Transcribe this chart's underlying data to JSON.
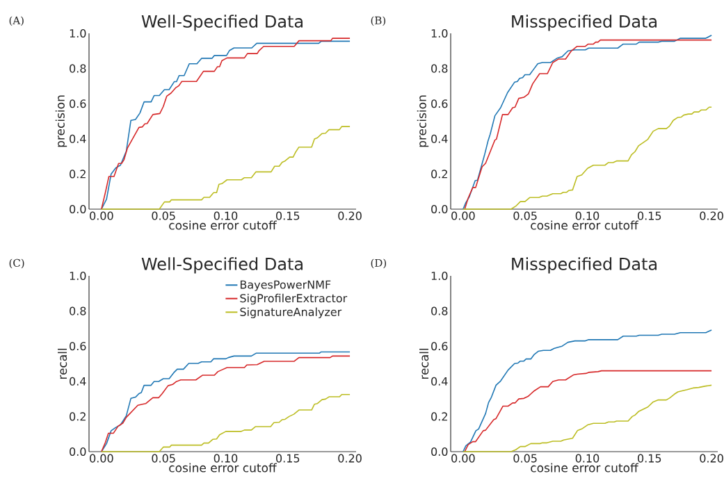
{
  "chart_data": [
    {
      "type": "line",
      "title": "Well-Specified Data",
      "xlabel": "cosine error cutoff",
      "ylabel": "precision",
      "annotations": [
        "(A)"
      ],
      "xlim": [
        -0.01,
        0.205
      ],
      "ylim": [
        0,
        1.0
      ],
      "xticks": [
        {
          "value": 0,
          "label": "0.00"
        },
        {
          "value": 0.05,
          "label": "0.05"
        },
        {
          "value": 0.1,
          "label": "0.10"
        },
        {
          "value": 0.15,
          "label": "0.15"
        },
        {
          "value": 0.2,
          "label": "0.20"
        }
      ],
      "yticks": [
        {
          "value": 0,
          "label": "0.0"
        },
        {
          "value": 0.2,
          "label": "0.2"
        },
        {
          "value": 0.4,
          "label": "0.4"
        },
        {
          "value": 0.6,
          "label": "0.6"
        },
        {
          "value": 0.8,
          "label": "0.8"
        },
        {
          "value": 1.0,
          "label": "1.0"
        }
      ],
      "series": [
        {
          "color": "#1f77b4",
          "x": [
            0,
            0.0041,
            0.0078,
            0.0116,
            0.0153,
            0.02,
            0.0237,
            0.0274,
            0.031,
            0.0343,
            0.04,
            0.0424,
            0.0466,
            0.0507,
            0.0545,
            0.0586,
            0.0604,
            0.0625,
            0.0666,
            0.0707,
            0.0769,
            0.0806,
            0.089,
            0.0909,
            0.1007,
            0.103,
            0.1067,
            0.121,
            0.125,
            0.1749,
            0.177,
            0.2
          ],
          "values": [
            0,
            0.057,
            0.2,
            0.235,
            0.25,
            0.33,
            0.505,
            0.51,
            0.547,
            0.61,
            0.61,
            0.646,
            0.646,
            0.68,
            0.68,
            0.725,
            0.725,
            0.76,
            0.76,
            0.827,
            0.827,
            0.858,
            0.858,
            0.874,
            0.874,
            0.902,
            0.917,
            0.917,
            0.943,
            0.943,
            0.955,
            0.955
          ]
        },
        {
          "color": "#d62728",
          "x": [
            0,
            0.0032,
            0.006,
            0.0101,
            0.0138,
            0.0162,
            0.0181,
            0.0209,
            0.0302,
            0.033,
            0.0349,
            0.0368,
            0.0414,
            0.047,
            0.0498,
            0.0526,
            0.056,
            0.0597,
            0.0623,
            0.0647,
            0.0765,
            0.0821,
            0.0909,
            0.0933,
            0.0951,
            0.097,
            0.1011,
            0.1151,
            0.1175,
            0.1254,
            0.1269,
            0.1306,
            0.1552,
            0.159,
            0.1847,
            0.186,
            0.2
          ],
          "values": [
            0,
            0.096,
            0.186,
            0.186,
            0.26,
            0.26,
            0.28,
            0.347,
            0.465,
            0.468,
            0.485,
            0.487,
            0.538,
            0.544,
            0.584,
            0.643,
            0.66,
            0.69,
            0.702,
            0.726,
            0.726,
            0.784,
            0.784,
            0.81,
            0.81,
            0.845,
            0.86,
            0.86,
            0.885,
            0.885,
            0.902,
            0.926,
            0.926,
            0.958,
            0.958,
            0.972,
            0.972
          ]
        },
        {
          "color": "#bcbd22",
          "x": [
            0,
            0.0466,
            0.0507,
            0.0549,
            0.0563,
            0.0806,
            0.0825,
            0.0871,
            0.0903,
            0.0927,
            0.0946,
            0.097,
            0.1011,
            0.1127,
            0.1151,
            0.1207,
            0.1244,
            0.1366,
            0.1394,
            0.1431,
            0.1455,
            0.1478,
            0.1515,
            0.1543,
            0.1562,
            0.159,
            0.1692,
            0.1715,
            0.1739,
            0.1776,
            0.1804,
            0.1832,
            0.1916,
            0.1935,
            0.2
          ],
          "values": [
            0,
            0,
            0.041,
            0.041,
            0.053,
            0.053,
            0.067,
            0.067,
            0.094,
            0.094,
            0.141,
            0.145,
            0.167,
            0.167,
            0.179,
            0.179,
            0.212,
            0.212,
            0.244,
            0.244,
            0.267,
            0.274,
            0.296,
            0.296,
            0.323,
            0.353,
            0.353,
            0.399,
            0.406,
            0.43,
            0.432,
            0.452,
            0.452,
            0.47,
            0.47
          ]
        }
      ]
    },
    {
      "type": "line",
      "title": "Misspecified Data",
      "xlabel": "cosine error cutoff",
      "ylabel": "precision",
      "annotations": [
        "(B)"
      ],
      "xlim": [
        -0.01,
        0.205
      ],
      "ylim": [
        0,
        1.0
      ],
      "xticks": [
        {
          "value": 0,
          "label": "0.00"
        },
        {
          "value": 0.05,
          "label": "0.05"
        },
        {
          "value": 0.1,
          "label": "0.10"
        },
        {
          "value": 0.15,
          "label": "0.15"
        },
        {
          "value": 0.2,
          "label": "0.20"
        }
      ],
      "yticks": [
        {
          "value": 0,
          "label": "0.0"
        },
        {
          "value": 0.2,
          "label": "0.2"
        },
        {
          "value": 0.4,
          "label": "0.4"
        },
        {
          "value": 0.6,
          "label": "0.6"
        },
        {
          "value": 0.8,
          "label": "0.8"
        },
        {
          "value": 1.0,
          "label": "1.0"
        }
      ],
      "series": [
        {
          "color": "#1f77b4",
          "x": [
            0,
            0.0022,
            0.005,
            0.0097,
            0.0116,
            0.0172,
            0.02,
            0.0218,
            0.0256,
            0.0302,
            0.0358,
            0.0414,
            0.0437,
            0.0455,
            0.0479,
            0.0498,
            0.0536,
            0.056,
            0.0601,
            0.0638,
            0.0704,
            0.0732,
            0.076,
            0.0797,
            0.0844,
            0.09,
            0.0984,
            0.1011,
            0.1245,
            0.1289,
            0.1395,
            0.1418,
            0.1571,
            0.1599,
            0.1702,
            0.1749,
            0.1954,
            0.2
          ],
          "values": [
            0,
            0.037,
            0.07,
            0.162,
            0.165,
            0.307,
            0.386,
            0.426,
            0.531,
            0.577,
            0.663,
            0.722,
            0.726,
            0.744,
            0.748,
            0.765,
            0.765,
            0.788,
            0.827,
            0.834,
            0.834,
            0.847,
            0.86,
            0.867,
            0.9,
            0.906,
            0.906,
            0.916,
            0.916,
            0.939,
            0.939,
            0.95,
            0.95,
            0.955,
            0.955,
            0.972,
            0.972,
            0.989
          ]
        },
        {
          "color": "#d62728",
          "x": [
            0.0013,
            0.0041,
            0.0078,
            0.0101,
            0.0153,
            0.0181,
            0.0256,
            0.0269,
            0.0317,
            0.0362,
            0.0399,
            0.0418,
            0.0448,
            0.0489,
            0.0526,
            0.056,
            0.0616,
            0.0679,
            0.0722,
            0.0769,
            0.0825,
            0.0871,
            0.0918,
            0.0984,
            0.1007,
            0.1049,
            0.1067,
            0.1086,
            0.1105,
            0.2
          ],
          "values": [
            0,
            0.063,
            0.123,
            0.123,
            0.241,
            0.261,
            0.393,
            0.399,
            0.538,
            0.538,
            0.577,
            0.58,
            0.63,
            0.636,
            0.656,
            0.713,
            0.771,
            0.771,
            0.834,
            0.854,
            0.854,
            0.9,
            0.926,
            0.926,
            0.939,
            0.939,
            0.95,
            0.95,
            0.962,
            0.962
          ]
        },
        {
          "color": "#bcbd22",
          "x": [
            0,
            0.0386,
            0.0424,
            0.0461,
            0.0498,
            0.0536,
            0.061,
            0.0638,
            0.0675,
            0.0722,
            0.0787,
            0.0806,
            0.0834,
            0.0853,
            0.0881,
            0.0918,
            0.0955,
            0.1002,
            0.1049,
            0.1142,
            0.117,
            0.1207,
            0.1235,
            0.1328,
            0.1356,
            0.1384,
            0.1412,
            0.1487,
            0.153,
            0.1571,
            0.1636,
            0.1661,
            0.1692,
            0.1729,
            0.1757,
            0.1776,
            0.1813,
            0.1841,
            0.186,
            0.1897,
            0.1916,
            0.1954,
            0.1981,
            0.2
          ],
          "values": [
            0,
            0,
            0.017,
            0.043,
            0.043,
            0.066,
            0.066,
            0.074,
            0.074,
            0.088,
            0.088,
            0.096,
            0.096,
            0.107,
            0.109,
            0.186,
            0.195,
            0.232,
            0.25,
            0.25,
            0.265,
            0.265,
            0.274,
            0.274,
            0.31,
            0.327,
            0.36,
            0.397,
            0.443,
            0.458,
            0.458,
            0.472,
            0.505,
            0.522,
            0.524,
            0.535,
            0.541,
            0.541,
            0.553,
            0.553,
            0.564,
            0.564,
            0.58,
            0.58
          ]
        }
      ]
    },
    {
      "type": "line",
      "title": "Well-Specified Data",
      "xlabel": "cosine error cutoff",
      "ylabel": "recall",
      "annotations": [
        "(C)"
      ],
      "legend": "top right",
      "xlim": [
        -0.01,
        0.205
      ],
      "ylim": [
        0,
        1.0
      ],
      "xticks": [
        {
          "value": 0,
          "label": "0.00"
        },
        {
          "value": 0.05,
          "label": "0.05"
        },
        {
          "value": 0.1,
          "label": "0.10"
        },
        {
          "value": 0.15,
          "label": "0.15"
        },
        {
          "value": 0.2,
          "label": "0.20"
        }
      ],
      "yticks": [
        {
          "value": 0,
          "label": "0.0"
        },
        {
          "value": 0.2,
          "label": "0.2"
        },
        {
          "value": 0.4,
          "label": "0.4"
        },
        {
          "value": 0.6,
          "label": "0.6"
        },
        {
          "value": 0.8,
          "label": "0.8"
        },
        {
          "value": 1.0,
          "label": "1.0"
        }
      ],
      "series": [
        {
          "name": "BayesPowerNMF",
          "color": "#1f77b4",
          "x": [
            0,
            0.0041,
            0.0078,
            0.0116,
            0.0153,
            0.02,
            0.0237,
            0.0274,
            0.0302,
            0.0321,
            0.0343,
            0.0399,
            0.0424,
            0.0461,
            0.0498,
            0.0545,
            0.0582,
            0.061,
            0.066,
            0.0703,
            0.0778,
            0.0806,
            0.0881,
            0.0903,
            0.1002,
            0.1021,
            0.1067,
            0.1207,
            0.1245,
            0.1754,
            0.1767,
            0.2
          ],
          "values": [
            0,
            0.046,
            0.119,
            0.138,
            0.152,
            0.204,
            0.303,
            0.31,
            0.33,
            0.336,
            0.377,
            0.377,
            0.399,
            0.399,
            0.415,
            0.415,
            0.449,
            0.469,
            0.469,
            0.502,
            0.502,
            0.511,
            0.511,
            0.528,
            0.528,
            0.535,
            0.544,
            0.544,
            0.56,
            0.56,
            0.567,
            0.567
          ]
        },
        {
          "name": "SigProfilerExtractor",
          "color": "#d62728",
          "x": [
            0,
            0.0032,
            0.0056,
            0.0097,
            0.0134,
            0.0172,
            0.02,
            0.0293,
            0.033,
            0.0358,
            0.0414,
            0.0461,
            0.0489,
            0.0536,
            0.0573,
            0.0601,
            0.0638,
            0.076,
            0.0815,
            0.0909,
            0.0937,
            0.0965,
            0.1011,
            0.1151,
            0.117,
            0.1254,
            0.131,
            0.1552,
            0.159,
            0.1841,
            0.186,
            0.2
          ],
          "values": [
            0,
            0.053,
            0.105,
            0.105,
            0.145,
            0.162,
            0.195,
            0.264,
            0.27,
            0.274,
            0.307,
            0.307,
            0.33,
            0.375,
            0.382,
            0.398,
            0.408,
            0.408,
            0.435,
            0.435,
            0.455,
            0.464,
            0.478,
            0.478,
            0.493,
            0.495,
            0.514,
            0.514,
            0.535,
            0.535,
            0.544,
            0.544
          ]
        },
        {
          "name": "SignatureAnalyzer",
          "color": "#bcbd22",
          "x": [
            0,
            0.0466,
            0.0498,
            0.0549,
            0.0563,
            0.0806,
            0.0825,
            0.0862,
            0.0896,
            0.0927,
            0.0951,
            0.1002,
            0.1123,
            0.1151,
            0.1207,
            0.1239,
            0.1362,
            0.1388,
            0.1431,
            0.1455,
            0.1478,
            0.1511,
            0.1549,
            0.159,
            0.1692,
            0.1715,
            0.1739,
            0.1776,
            0.1804,
            0.1832,
            0.1916,
            0.1935,
            0.2
          ],
          "values": [
            0,
            0,
            0.026,
            0.026,
            0.037,
            0.037,
            0.049,
            0.049,
            0.07,
            0.072,
            0.096,
            0.115,
            0.115,
            0.123,
            0.123,
            0.142,
            0.142,
            0.165,
            0.167,
            0.182,
            0.184,
            0.2,
            0.213,
            0.237,
            0.237,
            0.27,
            0.274,
            0.296,
            0.299,
            0.312,
            0.312,
            0.325,
            0.325
          ]
        }
      ]
    },
    {
      "type": "line",
      "title": "Misspecified Data",
      "xlabel": "cosine error cutoff",
      "ylabel": "recall",
      "annotations": [
        "(D)"
      ],
      "xlim": [
        -0.01,
        0.205
      ],
      "ylim": [
        0,
        1.0
      ],
      "xticks": [
        {
          "value": 0,
          "label": "0.00"
        },
        {
          "value": 0.05,
          "label": "0.05"
        },
        {
          "value": 0.1,
          "label": "0.10"
        },
        {
          "value": 0.15,
          "label": "0.15"
        },
        {
          "value": 0.2,
          "label": "0.20"
        }
      ],
      "yticks": [
        {
          "value": 0,
          "label": "0.0"
        },
        {
          "value": 0.2,
          "label": "0.2"
        },
        {
          "value": 0.4,
          "label": "0.4"
        },
        {
          "value": 0.6,
          "label": "0.6"
        },
        {
          "value": 0.8,
          "label": "0.8"
        },
        {
          "value": 1.0,
          "label": "1.0"
        }
      ],
      "series": [
        {
          "color": "#1f77b4",
          "x": [
            0,
            0.0022,
            0.006,
            0.0103,
            0.0125,
            0.0181,
            0.0205,
            0.0228,
            0.0265,
            0.0302,
            0.0362,
            0.0414,
            0.0442,
            0.0461,
            0.0489,
            0.0507,
            0.0545,
            0.0573,
            0.0605,
            0.0647,
            0.0703,
            0.0732,
            0.076,
            0.0797,
            0.0844,
            0.09,
            0.0984,
            0.1011,
            0.1245,
            0.1289,
            0.1395,
            0.1418,
            0.1571,
            0.1599,
            0.1702,
            0.1749,
            0.1954,
            0.2
          ],
          "values": [
            0,
            0.033,
            0.055,
            0.119,
            0.129,
            0.217,
            0.279,
            0.31,
            0.378,
            0.402,
            0.464,
            0.501,
            0.504,
            0.515,
            0.515,
            0.527,
            0.527,
            0.553,
            0.571,
            0.576,
            0.576,
            0.587,
            0.593,
            0.6,
            0.622,
            0.63,
            0.63,
            0.637,
            0.637,
            0.657,
            0.657,
            0.662,
            0.662,
            0.668,
            0.668,
            0.677,
            0.677,
            0.692
          ]
        },
        {
          "color": "#d62728",
          "x": [
            0.0013,
            0.0041,
            0.0078,
            0.0101,
            0.0162,
            0.0181,
            0.0246,
            0.0265,
            0.0321,
            0.0362,
            0.0399,
            0.0418,
            0.0448,
            0.0489,
            0.0522,
            0.0573,
            0.0623,
            0.0685,
            0.0722,
            0.0769,
            0.0825,
            0.089,
            0.0918,
            0.0989,
            0.1011,
            0.1086,
            0.1114,
            0.2
          ],
          "values": [
            0,
            0.04,
            0.057,
            0.057,
            0.119,
            0.122,
            0.182,
            0.188,
            0.259,
            0.259,
            0.277,
            0.277,
            0.3,
            0.303,
            0.314,
            0.346,
            0.369,
            0.369,
            0.399,
            0.408,
            0.408,
            0.437,
            0.441,
            0.445,
            0.451,
            0.455,
            0.46,
            0.46
          ]
        },
        {
          "color": "#bcbd22",
          "x": [
            0,
            0.0386,
            0.0424,
            0.0461,
            0.0498,
            0.0545,
            0.062,
            0.0638,
            0.0675,
            0.0722,
            0.0787,
            0.0809,
            0.0844,
            0.0881,
            0.0922,
            0.0955,
            0.1002,
            0.1049,
            0.1142,
            0.117,
            0.1217,
            0.1235,
            0.1328,
            0.1362,
            0.1384,
            0.1412,
            0.1487,
            0.153,
            0.1571,
            0.1636,
            0.1664,
            0.1701,
            0.1729,
            0.1757,
            0.1804,
            0.185,
            0.1897,
            0.1944,
            0.2
          ],
          "values": [
            0,
            0,
            0.011,
            0.029,
            0.029,
            0.046,
            0.046,
            0.05,
            0.05,
            0.059,
            0.059,
            0.066,
            0.071,
            0.076,
            0.121,
            0.129,
            0.152,
            0.161,
            0.161,
            0.169,
            0.169,
            0.174,
            0.174,
            0.2,
            0.208,
            0.228,
            0.254,
            0.283,
            0.294,
            0.294,
            0.306,
            0.327,
            0.34,
            0.345,
            0.353,
            0.362,
            0.365,
            0.372,
            0.378
          ]
        }
      ]
    }
  ]
}
